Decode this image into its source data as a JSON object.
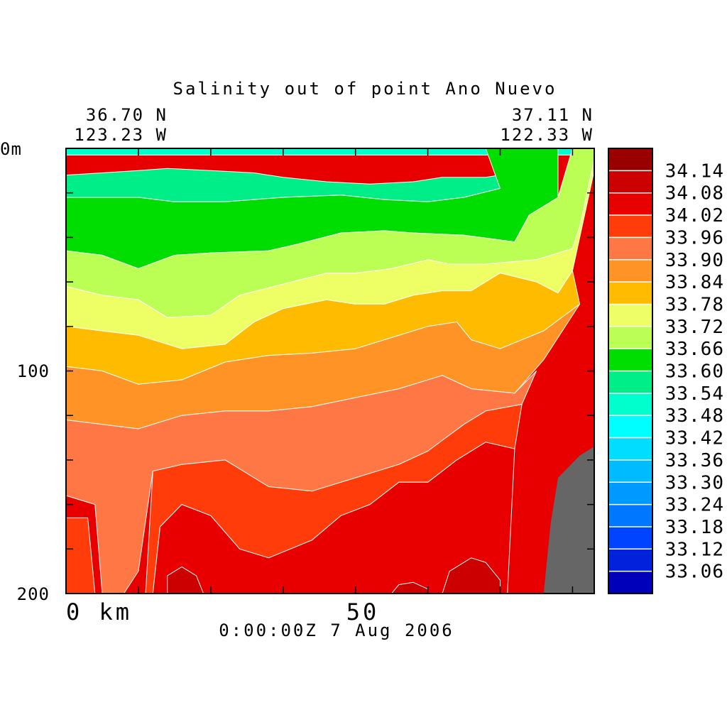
{
  "chart_data": {
    "type": "heatmap",
    "title": "Salinity out of point Ano Nuevo",
    "start_coords": {
      "lat": "36.70 N",
      "lon": "123.23 W"
    },
    "end_coords": {
      "lat": "37.11 N",
      "lon": "122.33 W"
    },
    "y_axis": {
      "top_label": "0m",
      "mid_label": "100",
      "bottom_label": "200",
      "range": [
        0,
        200
      ],
      "inverted": true,
      "unit": "m"
    },
    "x_axis": {
      "start_label": "0 km",
      "mid_label": "50",
      "range": [
        0,
        73
      ],
      "unit": "km"
    },
    "timestamp": "0:00:00Z   7 Aug 2006",
    "colorbar": {
      "levels": [
        "34.14",
        "34.08",
        "34.02",
        "33.96",
        "33.90",
        "33.84",
        "33.78",
        "33.72",
        "33.66",
        "33.60",
        "33.54",
        "33.48",
        "33.42",
        "33.36",
        "33.30",
        "33.24",
        "33.18",
        "33.12",
        "33.06"
      ],
      "colors": [
        "#990000",
        "#cc0000",
        "#e80000",
        "#ff3c0a",
        "#ff7744",
        "#ff9326",
        "#ffbb00",
        "#eeff66",
        "#bbff55",
        "#00dd00",
        "#00ee88",
        "#00ffcc",
        "#00ffff",
        "#00ddff",
        "#00bbff",
        "#0099ff",
        "#0077ff",
        "#0044ff",
        "#0022dd",
        "#0000bb"
      ]
    },
    "bathymetry_color": "#666666",
    "contour_bands": [
      {
        "level": 33.54,
        "color": "#00ffcc",
        "boundary": [
          [
            0,
            0
          ],
          [
            70,
            0
          ],
          [
            70,
            3
          ],
          [
            0,
            3
          ]
        ]
      },
      {
        "level": 33.54,
        "color": "#00ee88",
        "boundary": [
          [
            0,
            12
          ],
          [
            5,
            11
          ],
          [
            10,
            10
          ],
          [
            14,
            9
          ],
          [
            20,
            10
          ],
          [
            26,
            11
          ],
          [
            30,
            13
          ],
          [
            36,
            15
          ],
          [
            42,
            16
          ],
          [
            48,
            15
          ],
          [
            52,
            13
          ],
          [
            58,
            13
          ],
          [
            60,
            12
          ],
          [
            60,
            18
          ],
          [
            55,
            22
          ],
          [
            50,
            24
          ],
          [
            44,
            23
          ],
          [
            38,
            21
          ],
          [
            30,
            22
          ],
          [
            22,
            24
          ],
          [
            15,
            24
          ],
          [
            10,
            22
          ],
          [
            5,
            22
          ],
          [
            0,
            23
          ]
        ]
      },
      {
        "level": 33.6,
        "color": "#00dd00",
        "boundary": [
          [
            0,
            22
          ],
          [
            5,
            22
          ],
          [
            10,
            22
          ],
          [
            15,
            24
          ],
          [
            22,
            24
          ],
          [
            30,
            22
          ],
          [
            38,
            21
          ],
          [
            44,
            23
          ],
          [
            50,
            24
          ],
          [
            55,
            22
          ],
          [
            60,
            18
          ],
          [
            58,
            0
          ],
          [
            68,
            0
          ],
          [
            68,
            22
          ],
          [
            64,
            30
          ],
          [
            62,
            42
          ],
          [
            55,
            39
          ],
          [
            48,
            38
          ],
          [
            44,
            37
          ],
          [
            38,
            38
          ],
          [
            32,
            43
          ],
          [
            28,
            46
          ],
          [
            20,
            47
          ],
          [
            15,
            48
          ],
          [
            10,
            54
          ],
          [
            5,
            48
          ],
          [
            0,
            46
          ]
        ]
      },
      {
        "level": 33.66,
        "color": "#bbff55",
        "boundary": [
          [
            0,
            46
          ],
          [
            5,
            48
          ],
          [
            10,
            54
          ],
          [
            15,
            48
          ],
          [
            20,
            47
          ],
          [
            28,
            46
          ],
          [
            32,
            43
          ],
          [
            38,
            38
          ],
          [
            44,
            37
          ],
          [
            48,
            38
          ],
          [
            55,
            39
          ],
          [
            62,
            42
          ],
          [
            64,
            30
          ],
          [
            68,
            22
          ],
          [
            70,
            0
          ],
          [
            73,
            0
          ],
          [
            73,
            5
          ],
          [
            71,
            35
          ],
          [
            70,
            45
          ],
          [
            65,
            50
          ],
          [
            58,
            52
          ],
          [
            53,
            52
          ],
          [
            50,
            50
          ],
          [
            45,
            54
          ],
          [
            40,
            56
          ],
          [
            36,
            56
          ],
          [
            30,
            61
          ],
          [
            24,
            66
          ],
          [
            20,
            75
          ],
          [
            14,
            76
          ],
          [
            10,
            68
          ],
          [
            5,
            66
          ],
          [
            0,
            62
          ]
        ]
      },
      {
        "level": 33.72,
        "color": "#eeff66",
        "boundary": [
          [
            0,
            62
          ],
          [
            5,
            66
          ],
          [
            10,
            68
          ],
          [
            14,
            76
          ],
          [
            20,
            75
          ],
          [
            24,
            66
          ],
          [
            30,
            61
          ],
          [
            36,
            56
          ],
          [
            40,
            56
          ],
          [
            45,
            54
          ],
          [
            50,
            50
          ],
          [
            53,
            52
          ],
          [
            58,
            52
          ],
          [
            65,
            50
          ],
          [
            70,
            45
          ],
          [
            71,
            35
          ],
          [
            73,
            5
          ],
          [
            73,
            10
          ],
          [
            70,
            55
          ],
          [
            68,
            65
          ],
          [
            65,
            60
          ],
          [
            60,
            56
          ],
          [
            56,
            64
          ],
          [
            52,
            64
          ],
          [
            48,
            66
          ],
          [
            44,
            70
          ],
          [
            40,
            70
          ],
          [
            36,
            68
          ],
          [
            30,
            72
          ],
          [
            26,
            78
          ],
          [
            22,
            88
          ],
          [
            16,
            90
          ],
          [
            10,
            84
          ],
          [
            5,
            82
          ],
          [
            0,
            80
          ]
        ]
      },
      {
        "level": 33.78,
        "color": "#ffbb00",
        "boundary": [
          [
            0,
            80
          ],
          [
            5,
            82
          ],
          [
            10,
            84
          ],
          [
            16,
            90
          ],
          [
            22,
            88
          ],
          [
            26,
            78
          ],
          [
            30,
            72
          ],
          [
            36,
            68
          ],
          [
            40,
            70
          ],
          [
            44,
            70
          ],
          [
            48,
            66
          ],
          [
            52,
            64
          ],
          [
            56,
            64
          ],
          [
            60,
            56
          ],
          [
            65,
            60
          ],
          [
            68,
            65
          ],
          [
            70,
            55
          ],
          [
            71,
            70
          ],
          [
            66,
            82
          ],
          [
            60,
            90
          ],
          [
            56,
            86
          ],
          [
            54,
            78
          ],
          [
            50,
            80
          ],
          [
            44,
            86
          ],
          [
            40,
            90
          ],
          [
            34,
            92
          ],
          [
            28,
            93
          ],
          [
            22,
            96
          ],
          [
            16,
            104
          ],
          [
            10,
            106
          ],
          [
            5,
            100
          ],
          [
            0,
            98
          ]
        ]
      },
      {
        "level": 33.84,
        "color": "#ff9326",
        "boundary": [
          [
            0,
            98
          ],
          [
            5,
            100
          ],
          [
            10,
            106
          ],
          [
            16,
            104
          ],
          [
            22,
            96
          ],
          [
            28,
            93
          ],
          [
            34,
            92
          ],
          [
            40,
            90
          ],
          [
            44,
            86
          ],
          [
            50,
            80
          ],
          [
            54,
            78
          ],
          [
            56,
            86
          ],
          [
            60,
            90
          ],
          [
            66,
            82
          ],
          [
            71,
            70
          ],
          [
            66,
            95
          ],
          [
            62,
            110
          ],
          [
            56,
            108
          ],
          [
            52,
            102
          ],
          [
            46,
            108
          ],
          [
            40,
            112
          ],
          [
            34,
            116
          ],
          [
            28,
            118
          ],
          [
            22,
            118
          ],
          [
            16,
            120
          ],
          [
            10,
            126
          ],
          [
            5,
            124
          ],
          [
            0,
            122
          ]
        ]
      },
      {
        "level": 33.9,
        "color": "#ff7744",
        "boundary": [
          [
            0,
            122
          ],
          [
            5,
            124
          ],
          [
            10,
            126
          ],
          [
            16,
            120
          ],
          [
            22,
            118
          ],
          [
            28,
            118
          ],
          [
            34,
            116
          ],
          [
            40,
            112
          ],
          [
            46,
            108
          ],
          [
            52,
            102
          ],
          [
            56,
            108
          ],
          [
            62,
            110
          ],
          [
            65,
            100
          ],
          [
            63,
            115
          ],
          [
            58,
            118
          ],
          [
            55,
            124
          ],
          [
            50,
            136
          ],
          [
            46,
            142
          ],
          [
            40,
            148
          ],
          [
            34,
            154
          ],
          [
            28,
            152
          ],
          [
            22,
            140
          ],
          [
            16,
            142
          ],
          [
            12,
            145
          ],
          [
            10,
            190
          ],
          [
            8,
            200
          ],
          [
            5,
            200
          ],
          [
            4,
            160
          ],
          [
            0,
            156
          ]
        ]
      },
      {
        "level": 33.96,
        "color": "#ff3c0a",
        "boundary": [
          [
            0,
            166
          ],
          [
            3,
            166
          ],
          [
            4,
            200
          ],
          [
            0,
            200
          ]
        ]
      },
      {
        "level": 33.96,
        "color": "#ff3c0a",
        "boundary": [
          [
            11,
            200
          ],
          [
            12,
            145
          ],
          [
            16,
            142
          ],
          [
            22,
            140
          ],
          [
            28,
            152
          ],
          [
            34,
            154
          ],
          [
            40,
            148
          ],
          [
            46,
            142
          ],
          [
            50,
            136
          ],
          [
            55,
            124
          ],
          [
            58,
            118
          ],
          [
            63,
            115
          ],
          [
            62,
            135
          ],
          [
            58,
            132
          ],
          [
            54,
            140
          ],
          [
            50,
            150
          ],
          [
            46,
            150
          ],
          [
            42,
            160
          ],
          [
            38,
            165
          ],
          [
            34,
            176
          ],
          [
            28,
            184
          ],
          [
            24,
            180
          ],
          [
            20,
            165
          ],
          [
            16,
            160
          ],
          [
            13,
            170
          ],
          [
            12,
            200
          ]
        ]
      },
      {
        "level": 34.02,
        "color": "#e80000",
        "boundary": [
          [
            12,
            200
          ],
          [
            13,
            170
          ],
          [
            16,
            160
          ],
          [
            20,
            165
          ],
          [
            24,
            180
          ],
          [
            28,
            184
          ],
          [
            34,
            176
          ],
          [
            38,
            165
          ],
          [
            42,
            160
          ],
          [
            46,
            150
          ],
          [
            50,
            150
          ],
          [
            54,
            140
          ],
          [
            58,
            132
          ],
          [
            62,
            135
          ],
          [
            61,
            200
          ]
        ]
      },
      {
        "level": 34.08,
        "color": "#cc0000",
        "boundary": [
          [
            14,
            200
          ],
          [
            14,
            192
          ],
          [
            16,
            188
          ],
          [
            18,
            192
          ],
          [
            19,
            200
          ]
        ]
      },
      {
        "level": 34.08,
        "color": "#cc0000",
        "boundary": [
          [
            45,
            200
          ],
          [
            46,
            196
          ],
          [
            48,
            195
          ],
          [
            50,
            198
          ],
          [
            50,
            200
          ]
        ]
      },
      {
        "level": 34.08,
        "color": "#cc0000",
        "boundary": [
          [
            52,
            200
          ],
          [
            53,
            190
          ],
          [
            56,
            184
          ],
          [
            58,
            186
          ],
          [
            60,
            194
          ],
          [
            60,
            200
          ]
        ]
      }
    ],
    "bathymetry": [
      [
        66,
        200
      ],
      [
        67,
        168
      ],
      [
        68,
        148
      ],
      [
        71,
        138
      ],
      [
        75,
        130
      ],
      [
        80,
        122
      ],
      [
        84,
        108
      ],
      [
        88,
        92
      ],
      [
        92,
        70
      ],
      [
        95,
        50
      ],
      [
        98,
        32
      ],
      [
        100,
        20
      ],
      [
        100,
        200
      ]
    ]
  }
}
